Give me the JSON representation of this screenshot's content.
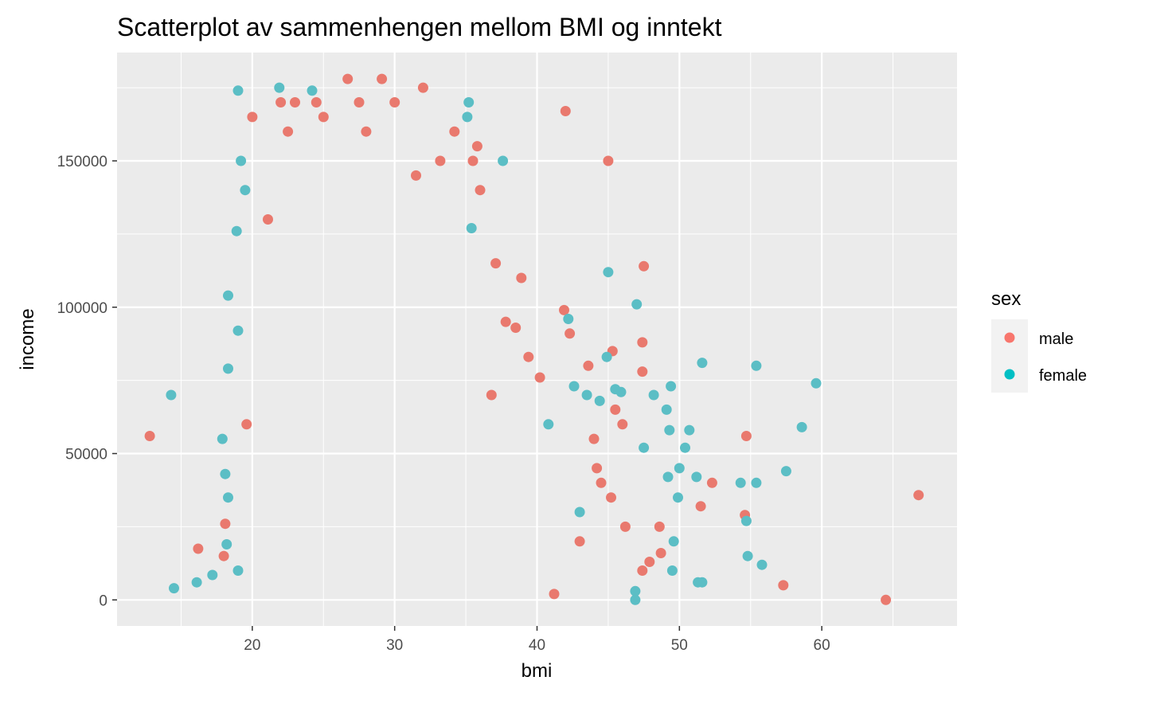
{
  "chart_data": {
    "type": "scatter",
    "title": "Scatterplot av sammenhengen mellom BMI og inntekt",
    "xlabel": "bmi",
    "ylabel": "income",
    "xlim": [
      10.5,
      69.5
    ],
    "ylim": [
      -8900,
      187000
    ],
    "x_ticks": [
      20,
      30,
      40,
      50,
      60
    ],
    "x_tick_labels": [
      "20",
      "30",
      "40",
      "50",
      "60"
    ],
    "y_ticks": [
      0,
      50000,
      100000,
      150000
    ],
    "y_tick_labels": [
      "0",
      "50000",
      "100000",
      "150000"
    ],
    "grid": true,
    "legend": {
      "title": "sex",
      "placement": "right",
      "entries": [
        {
          "label": "male",
          "color": "#F8766D"
        },
        {
          "label": "female",
          "color": "#00BFC4"
        }
      ]
    },
    "colors": {
      "panel": "#EBEBEB",
      "grid_major": "#FFFFFF",
      "male": "#E9796E",
      "female": "#5BBEC5"
    },
    "series": [
      {
        "name": "male",
        "color": "#E9796E",
        "points": [
          [
            12.8,
            56000
          ],
          [
            16.2,
            17500
          ],
          [
            26.7,
            178000
          ],
          [
            29.1,
            178000
          ],
          [
            32.0,
            175000
          ],
          [
            42.0,
            167000
          ],
          [
            45.0,
            150000
          ],
          [
            47.5,
            114000
          ],
          [
            66.8,
            35800
          ],
          [
            64.5,
            0
          ],
          [
            57.3,
            5000
          ],
          [
            52.3,
            40000
          ],
          [
            51.5,
            32000
          ],
          [
            54.7,
            56000
          ],
          [
            54.6,
            29000
          ],
          [
            45.3,
            85000
          ],
          [
            47.4,
            88000
          ],
          [
            47.4,
            78000
          ],
          [
            41.9,
            99000
          ],
          [
            42.3,
            91000
          ],
          [
            43.6,
            80000
          ],
          [
            48.7,
            16000
          ],
          [
            47.9,
            13000
          ],
          [
            47.4,
            10000
          ],
          [
            23.0,
            170000
          ],
          [
            24.5,
            170000
          ],
          [
            27.5,
            170000
          ],
          [
            30.0,
            170000
          ],
          [
            22.0,
            170000
          ],
          [
            35.5,
            150000
          ],
          [
            33.2,
            150000
          ],
          [
            36.0,
            140000
          ],
          [
            31.5,
            145000
          ],
          [
            34.2,
            160000
          ],
          [
            28.0,
            160000
          ],
          [
            25.0,
            165000
          ],
          [
            20.0,
            165000
          ],
          [
            22.5,
            160000
          ],
          [
            35.8,
            155000
          ],
          [
            21.1,
            130000
          ],
          [
            38.9,
            110000
          ],
          [
            37.1,
            115000
          ],
          [
            19.6,
            60000
          ],
          [
            40.2,
            76000
          ],
          [
            46.0,
            60000
          ],
          [
            45.5,
            65000
          ],
          [
            44.0,
            55000
          ],
          [
            44.2,
            45000
          ],
          [
            46.2,
            25000
          ],
          [
            48.6,
            25000
          ],
          [
            43.0,
            20000
          ],
          [
            45.2,
            35000
          ],
          [
            41.2,
            2000
          ],
          [
            44.5,
            40000
          ],
          [
            18.1,
            26000
          ],
          [
            18.0,
            15000
          ],
          [
            37.8,
            95000
          ],
          [
            38.5,
            93000
          ],
          [
            39.4,
            83000
          ],
          [
            36.8,
            70000
          ]
        ]
      },
      {
        "name": "female",
        "color": "#5BBEC5",
        "points": [
          [
            14.3,
            70000
          ],
          [
            14.5,
            4000
          ],
          [
            16.1,
            6000
          ],
          [
            17.2,
            8500
          ],
          [
            19.0,
            174000
          ],
          [
            21.9,
            175000
          ],
          [
            24.2,
            174000
          ],
          [
            35.2,
            170000
          ],
          [
            35.1,
            165000
          ],
          [
            37.6,
            150000
          ],
          [
            35.4,
            127000
          ],
          [
            45.0,
            112000
          ],
          [
            47.0,
            101000
          ],
          [
            42.2,
            96000
          ],
          [
            51.6,
            81000
          ],
          [
            55.4,
            80000
          ],
          [
            59.6,
            74000
          ],
          [
            58.6,
            59000
          ],
          [
            57.5,
            44000
          ],
          [
            55.4,
            40000
          ],
          [
            54.3,
            40000
          ],
          [
            55.8,
            12000
          ],
          [
            54.7,
            27000
          ],
          [
            54.8,
            15000
          ],
          [
            51.2,
            42000
          ],
          [
            50.7,
            58000
          ],
          [
            50.4,
            52000
          ],
          [
            50.0,
            45000
          ],
          [
            49.4,
            73000
          ],
          [
            49.9,
            35000
          ],
          [
            49.2,
            42000
          ],
          [
            48.2,
            70000
          ],
          [
            49.1,
            65000
          ],
          [
            49.3,
            58000
          ],
          [
            49.6,
            20000
          ],
          [
            49.5,
            10000
          ],
          [
            51.3,
            6000
          ],
          [
            51.6,
            6000
          ],
          [
            46.9,
            3000
          ],
          [
            46.9,
            0
          ],
          [
            45.9,
            71000
          ],
          [
            44.9,
            83000
          ],
          [
            18.3,
            104000
          ],
          [
            18.3,
            79000
          ],
          [
            19.0,
            92000
          ],
          [
            19.2,
            150000
          ],
          [
            19.5,
            140000
          ],
          [
            18.9,
            126000
          ],
          [
            17.9,
            55000
          ],
          [
            18.1,
            43000
          ],
          [
            18.3,
            35000
          ],
          [
            18.2,
            19000
          ],
          [
            19.0,
            10000
          ],
          [
            40.8,
            60000
          ],
          [
            42.6,
            73000
          ],
          [
            43.5,
            70000
          ],
          [
            44.4,
            68000
          ],
          [
            45.5,
            72000
          ],
          [
            47.5,
            52000
          ],
          [
            43.0,
            30000
          ]
        ]
      }
    ]
  }
}
